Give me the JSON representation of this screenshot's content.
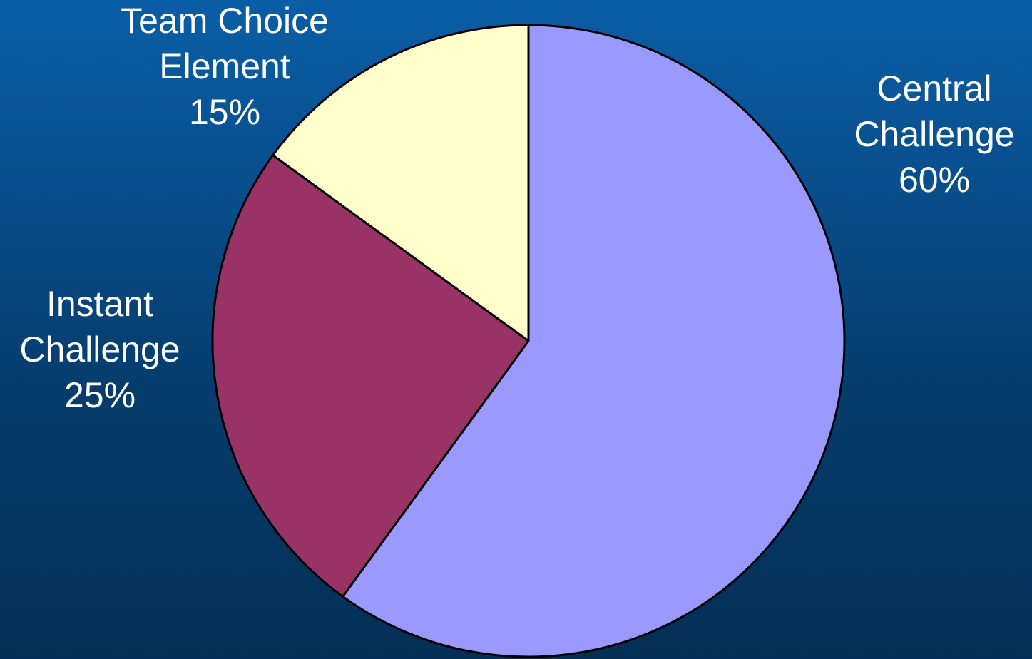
{
  "chart_data": {
    "type": "pie",
    "start_angle": "12 o'clock",
    "direction": "clockwise",
    "slices": [
      {
        "name_lines": [
          "Central",
          "Challenge"
        ],
        "value": 60,
        "value_label": "60%",
        "color": "#9999ff"
      },
      {
        "name_lines": [
          "Instant",
          "Challenge"
        ],
        "value": 25,
        "value_label": "25%",
        "color": "#993366"
      },
      {
        "name_lines": [
          "Team Choice",
          "Element"
        ],
        "value": 15,
        "value_label": "15%",
        "color": "#ffffcc"
      }
    ],
    "outline_color": "#000000",
    "label_color": "#ffffff"
  }
}
